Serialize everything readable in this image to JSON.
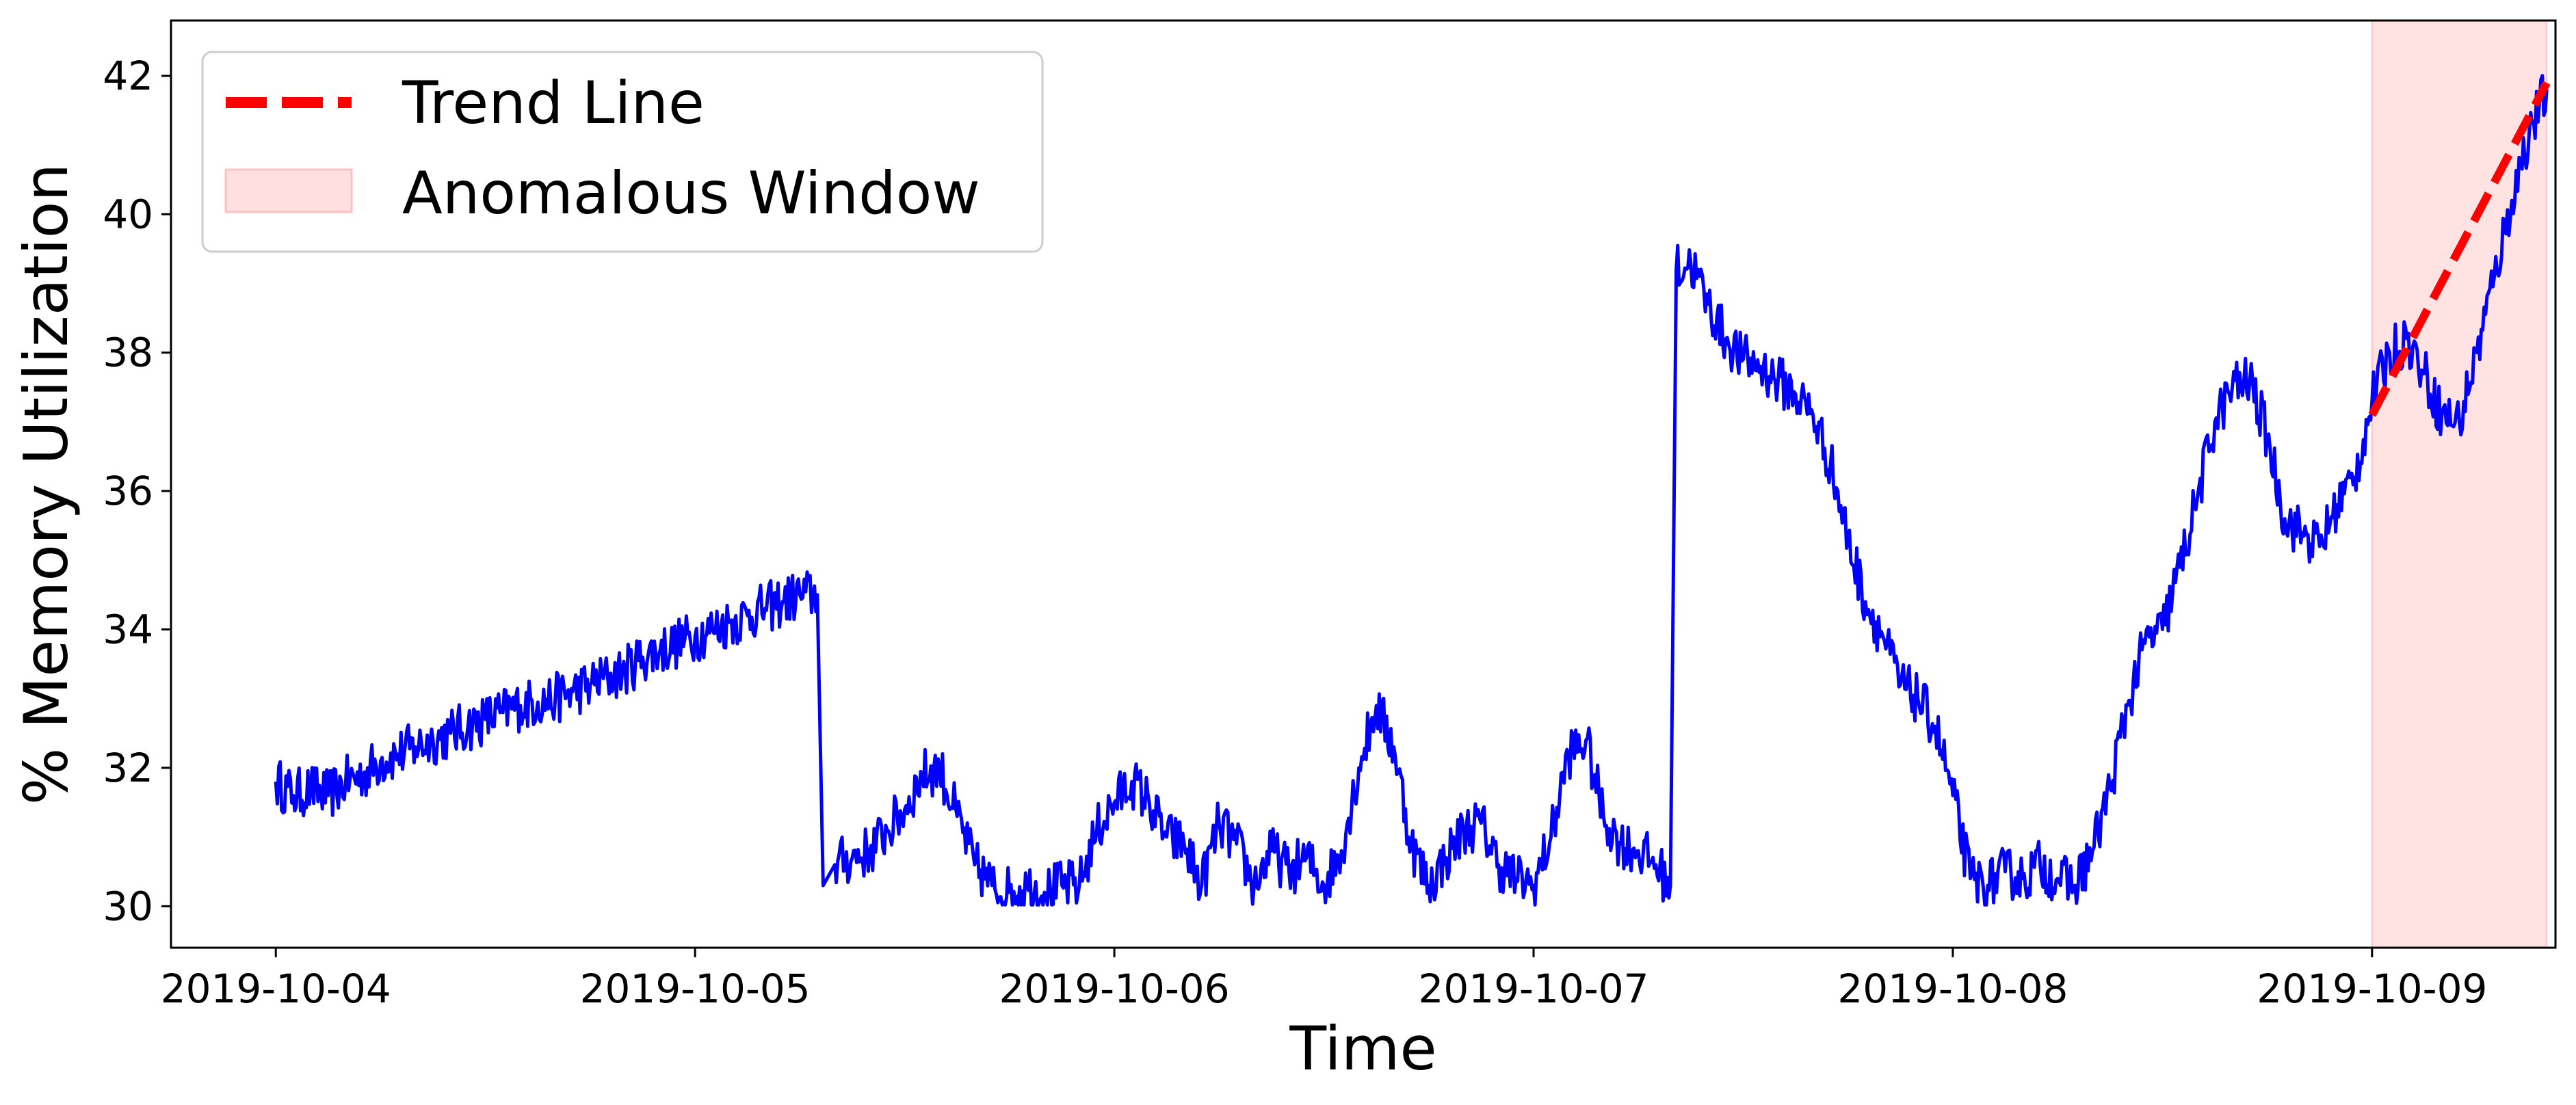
{
  "chart_data": {
    "type": "line",
    "title": "",
    "xlabel": "Time",
    "ylabel": "% Memory Utilization",
    "x_tick_labels": [
      "2019-10-04",
      "2019-10-05",
      "2019-10-06",
      "2019-10-07",
      "2019-10-08",
      "2019-10-09"
    ],
    "y_ticks": [
      "30",
      "32",
      "34",
      "36",
      "38",
      "40",
      "42"
    ],
    "xlim": [
      "2019-10-03T18:00",
      "2019-10-09T10:30"
    ],
    "ylim": [
      29.4,
      42.8
    ],
    "grid": false,
    "legend": {
      "placement": "top-left",
      "entries": [
        {
          "label": "Trend Line",
          "style": "dashed-line",
          "color": "#ff0000"
        },
        {
          "label": "Anomalous Window",
          "style": "patch",
          "color": "#ffc0c0"
        }
      ]
    },
    "series": [
      {
        "style": "solid",
        "color": "#0000ff",
        "points": [
          [
            "2019-10-04T00:00",
            31.8
          ],
          [
            "2019-10-04T01:00",
            31.6
          ],
          [
            "2019-10-04T02:00",
            31.7
          ],
          [
            "2019-10-04T03:00",
            31.6
          ],
          [
            "2019-10-04T04:00",
            31.8
          ],
          [
            "2019-10-04T05:00",
            31.9
          ],
          [
            "2019-10-04T06:00",
            32.1
          ],
          [
            "2019-10-04T07:00",
            32.2
          ],
          [
            "2019-10-04T08:00",
            32.3
          ],
          [
            "2019-10-04T09:00",
            32.4
          ],
          [
            "2019-10-04T10:00",
            32.5
          ],
          [
            "2019-10-04T11:00",
            32.6
          ],
          [
            "2019-10-04T12:00",
            32.7
          ],
          [
            "2019-10-04T13:00",
            32.8
          ],
          [
            "2019-10-04T14:00",
            32.9
          ],
          [
            "2019-10-04T15:00",
            32.95
          ],
          [
            "2019-10-04T16:00",
            33.0
          ],
          [
            "2019-10-04T17:00",
            33.1
          ],
          [
            "2019-10-04T18:00",
            33.2
          ],
          [
            "2019-10-04T19:00",
            33.3
          ],
          [
            "2019-10-04T20:00",
            33.4
          ],
          [
            "2019-10-04T21:00",
            33.6
          ],
          [
            "2019-10-04T22:00",
            33.7
          ],
          [
            "2019-10-04T23:00",
            33.8
          ],
          [
            "2019-10-05T00:00",
            33.9
          ],
          [
            "2019-10-05T01:00",
            34.0
          ],
          [
            "2019-10-05T02:00",
            34.1
          ],
          [
            "2019-10-05T03:00",
            34.2
          ],
          [
            "2019-10-05T04:00",
            34.3
          ],
          [
            "2019-10-05T05:00",
            34.4
          ],
          [
            "2019-10-05T06:00",
            34.5
          ],
          [
            "2019-10-05T07:00",
            34.5
          ],
          [
            "2019-10-05T07:20",
            30.3
          ],
          [
            "2019-10-05T08:00",
            30.6
          ],
          [
            "2019-10-05T09:00",
            30.7
          ],
          [
            "2019-10-05T10:00",
            30.8
          ],
          [
            "2019-10-05T11:00",
            31.1
          ],
          [
            "2019-10-05T12:00",
            31.4
          ],
          [
            "2019-10-05T13:00",
            31.9
          ],
          [
            "2019-10-05T14:00",
            32.0
          ],
          [
            "2019-10-05T15:00",
            31.3
          ],
          [
            "2019-10-05T16:00",
            30.6
          ],
          [
            "2019-10-05T17:00",
            30.3
          ],
          [
            "2019-10-05T18:00",
            30.2
          ],
          [
            "2019-10-05T19:00",
            30.3
          ],
          [
            "2019-10-05T20:00",
            30.2
          ],
          [
            "2019-10-05T21:00",
            30.3
          ],
          [
            "2019-10-05T22:00",
            30.3
          ],
          [
            "2019-10-05T23:00",
            31.1
          ],
          [
            "2019-10-06T00:00",
            31.5
          ],
          [
            "2019-10-06T01:00",
            31.8
          ],
          [
            "2019-10-06T02:00",
            31.5
          ],
          [
            "2019-10-06T03:00",
            31.0
          ],
          [
            "2019-10-06T04:00",
            30.9
          ],
          [
            "2019-10-06T05:00",
            30.3
          ],
          [
            "2019-10-06T06:00",
            31.2
          ],
          [
            "2019-10-06T07:00",
            30.9
          ],
          [
            "2019-10-06T08:00",
            30.3
          ],
          [
            "2019-10-06T09:00",
            30.8
          ],
          [
            "2019-10-06T10:00",
            30.5
          ],
          [
            "2019-10-06T11:00",
            30.7
          ],
          [
            "2019-10-06T12:00",
            30.3
          ],
          [
            "2019-10-06T13:00",
            30.8
          ],
          [
            "2019-10-06T14:00",
            32.0
          ],
          [
            "2019-10-06T15:00",
            32.9
          ],
          [
            "2019-10-06T16:00",
            32.3
          ],
          [
            "2019-10-06T17:00",
            30.9
          ],
          [
            "2019-10-06T18:00",
            30.3
          ],
          [
            "2019-10-06T19:00",
            30.7
          ],
          [
            "2019-10-06T20:00",
            31.1
          ],
          [
            "2019-10-06T21:00",
            31.2
          ],
          [
            "2019-10-06T22:00",
            30.6
          ],
          [
            "2019-10-06T23:00",
            30.4
          ],
          [
            "2019-10-07T00:00",
            30.3
          ],
          [
            "2019-10-07T01:00",
            31.0
          ],
          [
            "2019-10-07T02:00",
            32.2
          ],
          [
            "2019-10-07T03:00",
            32.4
          ],
          [
            "2019-10-07T04:00",
            31.3
          ],
          [
            "2019-10-07T05:00",
            30.9
          ],
          [
            "2019-10-07T06:00",
            30.8
          ],
          [
            "2019-10-07T07:00",
            30.6
          ],
          [
            "2019-10-07T07:50",
            30.3
          ],
          [
            "2019-10-07T08:10",
            39.2
          ],
          [
            "2019-10-07T09:00",
            39.3
          ],
          [
            "2019-10-07T10:00",
            38.7
          ],
          [
            "2019-10-07T11:00",
            38.2
          ],
          [
            "2019-10-07T12:00",
            37.9
          ],
          [
            "2019-10-07T13:00",
            37.8
          ],
          [
            "2019-10-07T14:00",
            37.6
          ],
          [
            "2019-10-07T15:00",
            37.4
          ],
          [
            "2019-10-07T16:00",
            37.1
          ],
          [
            "2019-10-07T17:00",
            36.4
          ],
          [
            "2019-10-07T18:00",
            35.3
          ],
          [
            "2019-10-07T19:00",
            34.4
          ],
          [
            "2019-10-07T20:00",
            33.9
          ],
          [
            "2019-10-07T21:00",
            33.2
          ],
          [
            "2019-10-07T22:00",
            33.0
          ],
          [
            "2019-10-07T23:00",
            32.6
          ],
          [
            "2019-10-08T00:00",
            31.6
          ],
          [
            "2019-10-08T01:00",
            30.4
          ],
          [
            "2019-10-08T02:00",
            30.3
          ],
          [
            "2019-10-08T03:00",
            30.5
          ],
          [
            "2019-10-08T04:00",
            30.4
          ],
          [
            "2019-10-08T05:00",
            30.6
          ],
          [
            "2019-10-08T06:00",
            30.4
          ],
          [
            "2019-10-08T07:00",
            30.3
          ],
          [
            "2019-10-08T08:00",
            30.8
          ],
          [
            "2019-10-08T09:00",
            31.7
          ],
          [
            "2019-10-08T10:00",
            32.9
          ],
          [
            "2019-10-08T11:00",
            33.8
          ],
          [
            "2019-10-08T12:00",
            34.0
          ],
          [
            "2019-10-08T13:00",
            34.9
          ],
          [
            "2019-10-08T14:00",
            35.9
          ],
          [
            "2019-10-08T15:00",
            37.0
          ],
          [
            "2019-10-08T16:00",
            37.5
          ],
          [
            "2019-10-08T17:00",
            37.6
          ],
          [
            "2019-10-08T18:00",
            36.8
          ],
          [
            "2019-10-08T19:00",
            35.6
          ],
          [
            "2019-10-08T20:00",
            35.4
          ],
          [
            "2019-10-08T21:00",
            35.2
          ],
          [
            "2019-10-08T22:00",
            35.8
          ],
          [
            "2019-10-08T23:00",
            36.2
          ],
          [
            "2019-10-09T00:00",
            37.3
          ],
          [
            "2019-10-09T01:00",
            38.0
          ],
          [
            "2019-10-09T02:00",
            38.2
          ],
          [
            "2019-10-09T03:00",
            37.7
          ],
          [
            "2019-10-09T04:00",
            37.1
          ],
          [
            "2019-10-09T05:00",
            37.0
          ],
          [
            "2019-10-09T06:00",
            38.0
          ],
          [
            "2019-10-09T07:00",
            39.1
          ],
          [
            "2019-10-09T08:00",
            40.2
          ],
          [
            "2019-10-09T09:00",
            41.2
          ],
          [
            "2019-10-09T10:00",
            41.8
          ]
        ]
      },
      {
        "style": "dashed",
        "color": "#ff0000",
        "points": [
          [
            "2019-10-09T00:00",
            37.1
          ],
          [
            "2019-10-09T10:00",
            41.9
          ]
        ]
      }
    ],
    "shaded_regions": [
      {
        "start": "2019-10-09T00:00",
        "end": "2019-10-09T10:00",
        "color": "#ffc0c0"
      }
    ]
  }
}
